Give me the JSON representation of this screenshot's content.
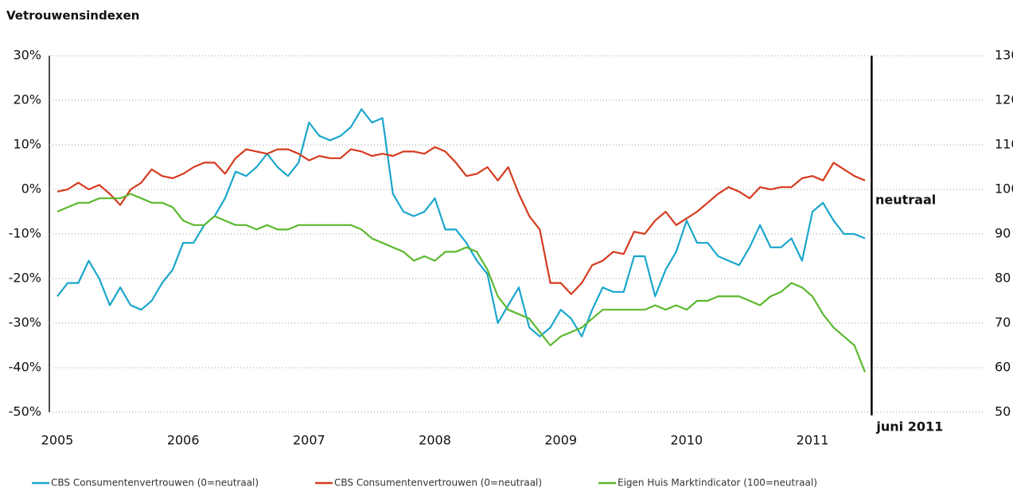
{
  "chart_data": {
    "type": "line",
    "title": "Vetrouwensindexen",
    "x": [
      2005,
      2005.083,
      2005.167,
      2005.25,
      2005.333,
      2005.417,
      2005.5,
      2005.583,
      2005.667,
      2005.75,
      2005.833,
      2005.917,
      2006,
      2006.083,
      2006.167,
      2006.25,
      2006.333,
      2006.417,
      2006.5,
      2006.583,
      2006.667,
      2006.75,
      2006.833,
      2006.917,
      2007,
      2007.083,
      2007.167,
      2007.25,
      2007.333,
      2007.417,
      2007.5,
      2007.583,
      2007.667,
      2007.75,
      2007.833,
      2007.917,
      2008,
      2008.083,
      2008.167,
      2008.25,
      2008.333,
      2008.417,
      2008.5,
      2008.583,
      2008.667,
      2008.75,
      2008.833,
      2008.917,
      2009,
      2009.083,
      2009.167,
      2009.25,
      2009.333,
      2009.417,
      2009.5,
      2009.583,
      2009.667,
      2009.75,
      2009.833,
      2009.917,
      2010,
      2010.083,
      2010.167,
      2010.25,
      2010.333,
      2010.417,
      2010.5,
      2010.583,
      2010.667,
      2010.75,
      2010.833,
      2010.917,
      2011,
      2011.083,
      2011.167,
      2011.25,
      2011.333,
      2011.417
    ],
    "xlim": [
      2005,
      2011.417
    ],
    "xticks": [
      2005,
      2006,
      2007,
      2008,
      2009,
      2010,
      2011
    ],
    "ylim": [
      -50,
      30
    ],
    "yticks": [
      {
        "value": 30,
        "label": "30%"
      },
      {
        "value": 20,
        "label": "20%"
      },
      {
        "value": 10,
        "label": "10%"
      },
      {
        "value": 0,
        "label": "0%"
      },
      {
        "value": -10,
        "label": "-10%"
      },
      {
        "value": -20,
        "label": "-20%"
      },
      {
        "value": -30,
        "label": "-30%"
      },
      {
        "value": -40,
        "label": "-40%"
      },
      {
        "value": -50,
        "label": "-50%"
      }
    ],
    "y2lim": [
      50,
      130
    ],
    "y2ticks": [
      130,
      120,
      110,
      100,
      90,
      80,
      70,
      60,
      50
    ],
    "grid": true,
    "legend": "bottom",
    "annotations": [
      {
        "text": "neutraal",
        "y": 0
      },
      {
        "text": "juni 2011",
        "x": 2011.47
      }
    ],
    "series": [
      {
        "name": "CBS Consumentenvertrouwen (0=neutraal)",
        "color": "#1aa6cc",
        "values": [
          -24,
          -21,
          -21,
          -16,
          -20,
          -26,
          -22,
          -26,
          -27,
          -25,
          -21,
          -18,
          -12,
          -12,
          -8,
          -6,
          -2,
          4,
          3,
          5,
          8,
          5,
          3,
          6,
          15,
          12,
          11,
          12,
          14,
          18,
          15,
          16,
          -1,
          -5,
          -6,
          -5,
          -2,
          -9,
          -9,
          -12,
          -16,
          -19,
          -30,
          -26,
          -22,
          -31,
          -33,
          -31,
          -27,
          -29,
          -33,
          -27,
          -22,
          -23,
          -23,
          -15,
          -15,
          -24,
          -18,
          -14,
          -7,
          -12,
          -12,
          -15,
          -16,
          -17,
          -13,
          -8,
          -13,
          -13,
          -11,
          -16,
          -5,
          -3,
          -7,
          -10,
          -10,
          -11
        ]
      },
      {
        "name": "CBS Consumentenvertrouwen (0=neutraal)",
        "color": "#d63b1f",
        "values": [
          -0.5,
          0,
          1.5,
          0,
          1,
          -1,
          -3.5,
          0,
          1.5,
          4.5,
          3,
          2.5,
          3.5,
          5,
          6,
          6,
          3.5,
          7,
          9,
          8.5,
          8,
          9,
          9,
          8,
          6.5,
          7.5,
          7,
          7,
          9,
          8.5,
          7.5,
          8,
          7.5,
          8.5,
          8.5,
          8,
          9.5,
          8.5,
          6,
          3,
          3.5,
          5,
          2,
          5,
          -1,
          -6,
          -9,
          -21,
          -21,
          -23.5,
          -21,
          -17,
          -16,
          -14,
          -14.5,
          -9.5,
          -10,
          -7,
          -5,
          -8,
          -6.5,
          -5,
          -3,
          -1,
          0.5,
          -0.5,
          -2,
          0.5,
          0,
          0.5,
          0.5,
          2.5,
          3,
          2,
          6,
          4.5,
          3,
          2
        ]
      },
      {
        "name": "Eigen Huis Marktindicator (100=neutraal)",
        "color": "#5cb82e",
        "axis": "y2",
        "values": [
          95,
          96,
          97,
          97,
          98,
          98,
          98,
          99,
          98,
          97,
          97,
          96,
          93,
          92,
          92,
          94,
          93,
          92,
          92,
          91,
          92,
          91,
          91,
          92,
          92,
          92,
          92,
          92,
          92,
          91,
          89,
          88,
          87,
          86,
          84,
          85,
          84,
          86,
          86,
          87,
          86,
          82,
          76,
          73,
          72,
          71,
          68,
          65,
          67,
          68,
          69,
          71,
          73,
          73,
          73,
          73,
          73,
          74,
          73,
          74,
          73,
          75,
          75,
          76,
          76,
          76,
          75,
          74,
          76,
          77,
          79,
          78,
          76,
          72,
          69,
          67,
          65,
          59
        ]
      }
    ]
  }
}
